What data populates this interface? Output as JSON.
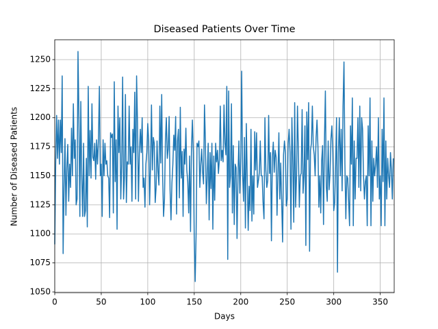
{
  "chart_data": {
    "type": "line",
    "title": "Diseased Patients Over Time",
    "xlabel": "Days",
    "ylabel": "Number of Diseased Patients",
    "color": "#1f77b4",
    "grid": true,
    "xlim": [
      0,
      365
    ],
    "ylim": [
      1049.4,
      1267.1
    ],
    "xticks": [
      0,
      50,
      100,
      150,
      200,
      250,
      300,
      350
    ],
    "yticks": [
      1050,
      1075,
      1100,
      1125,
      1150,
      1175,
      1200,
      1225,
      1250
    ],
    "x": [
      0,
      1,
      2,
      3,
      4,
      5,
      6,
      7,
      8,
      9,
      10,
      11,
      12,
      13,
      14,
      15,
      16,
      17,
      18,
      19,
      20,
      21,
      22,
      23,
      24,
      25,
      26,
      27,
      28,
      29,
      30,
      31,
      32,
      33,
      34,
      35,
      36,
      37,
      38,
      39,
      40,
      41,
      42,
      43,
      44,
      45,
      46,
      47,
      48,
      49,
      50,
      51,
      52,
      53,
      54,
      55,
      56,
      57,
      58,
      59,
      60,
      61,
      62,
      63,
      64,
      65,
      66,
      67,
      68,
      69,
      70,
      71,
      72,
      73,
      74,
      75,
      76,
      77,
      78,
      79,
      80,
      81,
      82,
      83,
      84,
      85,
      86,
      87,
      88,
      89,
      90,
      91,
      92,
      93,
      94,
      95,
      96,
      97,
      98,
      99,
      100,
      101,
      102,
      103,
      104,
      105,
      106,
      107,
      108,
      109,
      110,
      111,
      112,
      113,
      114,
      115,
      116,
      117,
      118,
      119,
      120,
      121,
      122,
      123,
      124,
      125,
      126,
      127,
      128,
      129,
      130,
      131,
      132,
      133,
      134,
      135,
      136,
      137,
      138,
      139,
      140,
      141,
      142,
      143,
      144,
      145,
      146,
      147,
      148,
      149,
      150,
      151,
      152,
      153,
      154,
      155,
      156,
      157,
      158,
      159,
      160,
      161,
      162,
      163,
      164,
      165,
      166,
      167,
      168,
      169,
      170,
      171,
      172,
      173,
      174,
      175,
      176,
      177,
      178,
      179,
      180,
      181,
      182,
      183,
      184,
      185,
      186,
      187,
      188,
      189,
      190,
      191,
      192,
      193,
      194,
      195,
      196,
      197,
      198,
      199,
      200,
      201,
      202,
      203,
      204,
      205,
      206,
      207,
      208,
      209,
      210,
      211,
      212,
      213,
      214,
      215,
      216,
      217,
      218,
      219,
      220,
      221,
      222,
      223,
      224,
      225,
      226,
      227,
      228,
      229,
      230,
      231,
      232,
      233,
      234,
      235,
      236,
      237,
      238,
      239,
      240,
      241,
      242,
      243,
      244,
      245,
      246,
      247,
      248,
      249,
      250,
      251,
      252,
      253,
      254,
      255,
      256,
      257,
      258,
      259,
      260,
      261,
      262,
      263,
      264,
      265,
      266,
      267,
      268,
      269,
      270,
      271,
      272,
      273,
      274,
      275,
      276,
      277,
      278,
      279,
      280,
      281,
      282,
      283,
      284,
      285,
      286,
      287,
      288,
      289,
      290,
      291,
      292,
      293,
      294,
      295,
      296,
      297,
      298,
      299,
      300,
      301,
      302,
      303,
      304,
      305,
      306,
      307,
      308,
      309,
      310,
      311,
      312,
      313,
      314,
      315,
      316,
      317,
      318,
      319,
      320,
      321,
      322,
      323,
      324,
      325,
      326,
      327,
      328,
      329,
      330,
      331,
      332,
      333,
      334,
      335,
      336,
      337,
      338,
      339,
      340,
      341,
      342,
      343,
      344,
      345,
      346,
      347,
      348,
      349,
      350,
      351,
      352,
      353,
      354,
      355,
      356,
      357,
      358,
      359,
      360,
      361,
      362,
      363,
      364
    ],
    "values": [
      1091,
      1160,
      1202,
      1165,
      1198,
      1160,
      1198,
      1170,
      1236,
      1083,
      1140,
      1182,
      1116,
      1157,
      1177,
      1128,
      1160,
      1140,
      1191,
      1150,
      1212,
      1165,
      1181,
      1125,
      1130,
      1257,
      1200,
      1115,
      1214,
      1150,
      1115,
      1178,
      1115,
      1120,
      1165,
      1106,
      1227,
      1150,
      1189,
      1148,
      1212,
      1166,
      1163,
      1178,
      1147,
      1181,
      1160,
      1181,
      1227,
      1150,
      1160,
      1115,
      1181,
      1150,
      1178,
      1160,
      1163,
      1150,
      1148,
      1114,
      1187,
      1183,
      1186,
      1118,
      1231,
      1145,
      1181,
      1104,
      1210,
      1170,
      1200,
      1130,
      1160,
      1235,
      1130,
      1150,
      1220,
      1127,
      1162,
      1160,
      1210,
      1160,
      1175,
      1128,
      1190,
      1170,
      1222,
      1130,
      1236,
      1195,
      1128,
      1170,
      1190,
      1170,
      1200,
      1140,
      1148,
      1123,
      1160,
      1170,
      1195,
      1180,
      1125,
      1159,
      1211,
      1155,
      1183,
      1178,
      1127,
      1140,
      1180,
      1154,
      1142,
      1210,
      1161,
      1220,
      1150,
      1115,
      1130,
      1180,
      1200,
      1165,
      1173,
      1201,
      1138,
      1112,
      1144,
      1160,
      1185,
      1172,
      1201,
      1117,
      1180,
      1190,
      1131,
      1209,
      1148,
      1171,
      1115,
      1173,
      1160,
      1191,
      1155,
      1145,
      1118,
      1167,
      1102,
      1173,
      1198,
      1170,
      1095,
      1059,
      1100,
      1178,
      1175,
      1180,
      1140,
      1160,
      1173,
      1153,
      1143,
      1211,
      1179,
      1126,
      1150,
      1178,
      1112,
      1170,
      1139,
      1178,
      1104,
      1167,
      1129,
      1178,
      1162,
      1172,
      1152,
      1164,
      1210,
      1163,
      1172,
      1162,
      1211,
      1178,
      1168,
      1227,
      1078,
      1223,
      1140,
      1150,
      1212,
      1118,
      1176,
      1108,
      1160,
      1157,
      1096,
      1150,
      1180,
      1135,
      1165,
      1240,
      1152,
      1128,
      1183,
      1105,
      1195,
      1148,
      1103,
      1141,
      1120,
      1190,
      1111,
      1150,
      1117,
      1188,
      1155,
      1187,
      1140,
      1146,
      1153,
      1180,
      1150,
      1150,
      1127,
      1113,
      1200,
      1155,
      1140,
      1146,
      1202,
      1152,
      1170,
      1094,
      1166,
      1179,
      1153,
      1172,
      1166,
      1116,
      1152,
      1187,
      1130,
      1161,
      1128,
      1093,
      1168,
      1180,
      1170,
      1124,
      1130,
      1178,
      1190,
      1170,
      1104,
      1200,
      1162,
      1110,
      1213,
      1123,
      1150,
      1210,
      1170,
      1123,
      1150,
      1152,
      1207,
      1135,
      1150,
      1193,
      1090,
      1205,
      1164,
      1213,
      1085,
      1172,
      1178,
      1210,
      1175,
      1168,
      1150,
      1183,
      1198,
      1175,
      1123,
      1150,
      1118,
      1163,
      1176,
      1108,
      1180,
      1223,
      1141,
      1128,
      1180,
      1138,
      1152,
      1182,
      1193,
      1170,
      1120,
      1127,
      1160,
      1200,
      1067,
      1170,
      1200,
      1150,
      1190,
      1137,
      1210,
      1248,
      1160,
      1113,
      1150,
      1148,
      1128,
      1107,
      1193,
      1160,
      1217,
      1107,
      1180,
      1130,
      1165,
      1165,
      1200,
      1140,
      1210,
      1137,
      1200,
      1190,
      1150,
      1130,
      1145,
      1150,
      1107,
      1193,
      1150,
      1217,
      1107,
      1180,
      1128,
      1165,
      1150,
      1160,
      1175,
      1140,
      1200,
      1130,
      1150,
      1107,
      1190,
      1145,
      1217,
      1107,
      1180,
      1130,
      1165,
      1150,
      1140,
      1170,
      1155,
      1130,
      1165
    ]
  }
}
